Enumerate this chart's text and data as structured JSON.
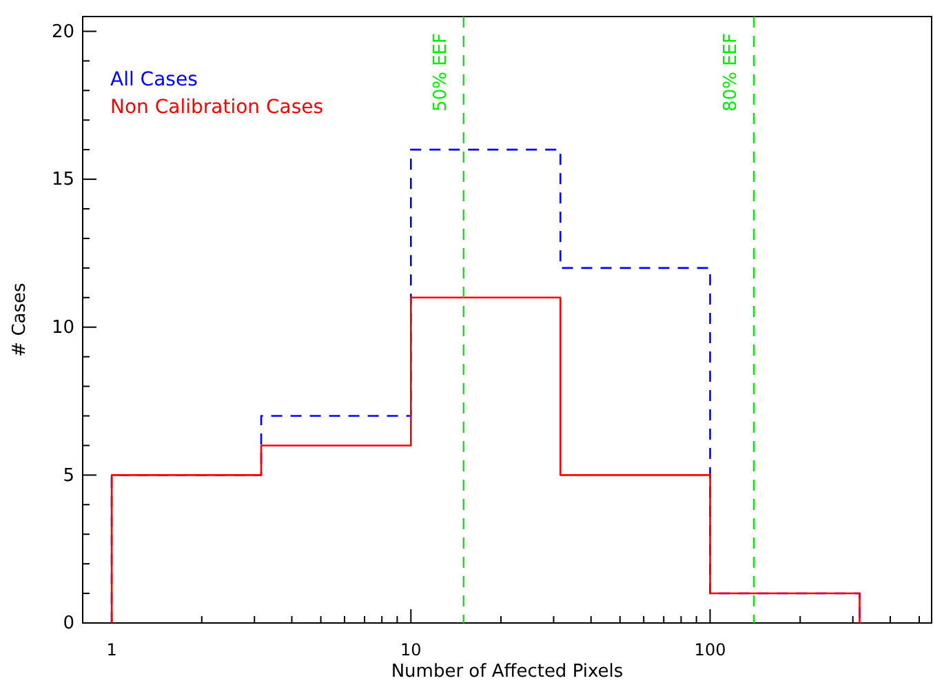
{
  "chart_data": {
    "type": "histogram",
    "xlabel": "Number of Affected Pixels",
    "ylabel": "# Cases",
    "log": "x",
    "bins": [
      1,
      3.16,
      10,
      31.6,
      100,
      316
    ],
    "series": [
      {
        "name": "All Cases",
        "color": "#0000ff",
        "line_style": "dashed",
        "values": [
          5,
          7,
          16,
          12,
          1
        ]
      },
      {
        "name": "Non Calibration Cases",
        "color": "#ff0000",
        "line_style": "solid",
        "values": [
          5,
          6,
          11,
          5,
          1
        ]
      }
    ],
    "xlim": [
      0.8,
      550
    ],
    "ylim": [
      0,
      20.5
    ],
    "xticks": [
      1,
      {
        "value": 2,
        "label": null
      },
      {
        "value": 3,
        "label": null
      },
      {
        "value": 4,
        "label": null
      },
      {
        "value": 5,
        "label": null
      },
      {
        "value": 6,
        "label": null
      },
      {
        "value": 7,
        "label": null
      },
      {
        "value": 8,
        "label": null
      },
      {
        "value": 9,
        "label": null
      },
      10,
      {
        "value": 20,
        "label": null
      },
      {
        "value": 30,
        "label": null
      },
      {
        "value": 40,
        "label": null
      },
      {
        "value": 50,
        "label": null
      },
      {
        "value": 60,
        "label": null
      },
      {
        "value": 70,
        "label": null
      },
      {
        "value": 80,
        "label": null
      },
      {
        "value": 90,
        "label": null
      },
      100,
      {
        "value": 200,
        "label": null
      },
      {
        "value": 300,
        "label": null
      },
      {
        "value": 400,
        "label": null
      },
      {
        "value": 500,
        "label": null
      }
    ],
    "yticks": [
      0,
      {
        "value": 1,
        "label": null
      },
      {
        "value": 2,
        "label": null
      },
      {
        "value": 3,
        "label": null
      },
      {
        "value": 4,
        "label": null
      },
      5,
      {
        "value": 6,
        "label": null
      },
      {
        "value": 7,
        "label": null
      },
      {
        "value": 8,
        "label": null
      },
      {
        "value": 9,
        "label": null
      },
      10,
      {
        "value": 11,
        "label": null
      },
      {
        "value": 12,
        "label": null
      },
      {
        "value": 13,
        "label": null
      },
      {
        "value": 14,
        "label": null
      },
      15,
      {
        "value": 16,
        "label": null
      },
      {
        "value": 17,
        "label": null
      },
      {
        "value": 18,
        "label": null
      },
      {
        "value": 19,
        "label": null
      },
      20
    ],
    "ref_lines": [
      {
        "axis": "x",
        "value": 15,
        "label": "50% EEF",
        "color": "#00ee00",
        "line_style": "dashed"
      },
      {
        "axis": "x",
        "value": 140,
        "label": "80% EEF",
        "color": "#00ee00",
        "line_style": "dashed"
      }
    ],
    "legend": "top left",
    "grid": false
  }
}
